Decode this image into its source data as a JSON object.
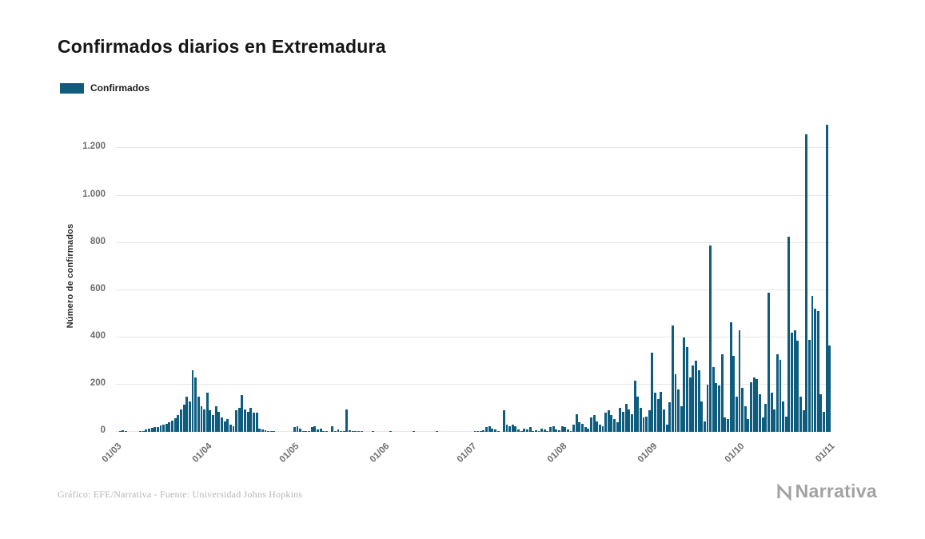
{
  "footer": {
    "credit": "Gráfico: EFE/Narrativa - Fuente: Universidad Johns Hopkins",
    "brand": "Narrativa"
  },
  "chart_data": {
    "type": "bar",
    "title": "Confirmados diarios en Extremadura",
    "ylabel": "Número de confirmados",
    "xlabel": "",
    "grid": true,
    "legend_position": "top-left",
    "x_tick_rotation": -45,
    "ylim": [
      0,
      1320
    ],
    "y_ticks": [
      {
        "label": "0",
        "value": 0
      },
      {
        "label": "200",
        "value": 200
      },
      {
        "label": "400",
        "value": 400
      },
      {
        "label": "600",
        "value": 600
      },
      {
        "label": "800",
        "value": 800
      },
      {
        "label": "1.000",
        "value": 1000
      },
      {
        "label": "1.200",
        "value": 1200
      }
    ],
    "x_ticks": [
      {
        "label": "01/03",
        "index": 0
      },
      {
        "label": "01/04",
        "index": 31
      },
      {
        "label": "01/05",
        "index": 61
      },
      {
        "label": "01/06",
        "index": 92
      },
      {
        "label": "01/07",
        "index": 122
      },
      {
        "label": "01/08",
        "index": 153
      },
      {
        "label": "01/09",
        "index": 184
      },
      {
        "label": "01/10",
        "index": 214
      },
      {
        "label": "01/11",
        "index": 245
      }
    ],
    "series": [
      {
        "name": "Confirmados",
        "color": "#0e5c7e",
        "values": [
          0,
          3,
          8,
          4,
          0,
          0,
          0,
          0,
          2,
          5,
          10,
          14,
          18,
          22,
          20,
          26,
          30,
          35,
          40,
          48,
          58,
          72,
          95,
          115,
          150,
          130,
          260,
          230,
          150,
          110,
          95,
          165,
          90,
          70,
          110,
          85,
          60,
          45,
          55,
          30,
          25,
          90,
          100,
          155,
          95,
          85,
          100,
          80,
          80,
          15,
          10,
          8,
          5,
          3,
          2,
          0,
          0,
          0,
          0,
          0,
          0,
          20,
          25,
          15,
          5,
          3,
          2,
          20,
          25,
          10,
          15,
          5,
          3,
          0,
          25,
          5,
          10,
          3,
          2,
          95,
          8,
          5,
          5,
          3,
          2,
          0,
          0,
          0,
          5,
          0,
          0,
          0,
          0,
          0,
          2,
          0,
          0,
          0,
          0,
          0,
          0,
          0,
          3,
          0,
          0,
          0,
          0,
          0,
          0,
          0,
          2,
          0,
          0,
          0,
          0,
          0,
          0,
          0,
          0,
          0,
          0,
          0,
          0,
          2,
          3,
          5,
          8,
          20,
          25,
          15,
          10,
          5,
          0,
          90,
          30,
          25,
          30,
          25,
          10,
          5,
          15,
          10,
          20,
          5,
          8,
          3,
          15,
          10,
          5,
          20,
          25,
          10,
          8,
          25,
          20,
          10,
          5,
          30,
          75,
          40,
          35,
          20,
          15,
          60,
          70,
          45,
          30,
          25,
          80,
          90,
          70,
          55,
          40,
          100,
          85,
          120,
          95,
          75,
          215,
          150,
          100,
          60,
          65,
          90,
          335,
          165,
          140,
          170,
          95,
          30,
          125,
          450,
          245,
          180,
          110,
          400,
          360,
          230,
          280,
          300,
          260,
          130,
          45,
          200,
          790,
          275,
          205,
          195,
          330,
          60,
          55,
          465,
          320,
          150,
          430,
          185,
          110,
          55,
          210,
          230,
          225,
          160,
          60,
          120,
          590,
          165,
          95,
          330,
          305,
          130,
          65,
          825,
          420,
          430,
          385,
          150,
          90,
          1260,
          390,
          575,
          520,
          510,
          160,
          85,
          1300,
          365
        ]
      }
    ]
  }
}
